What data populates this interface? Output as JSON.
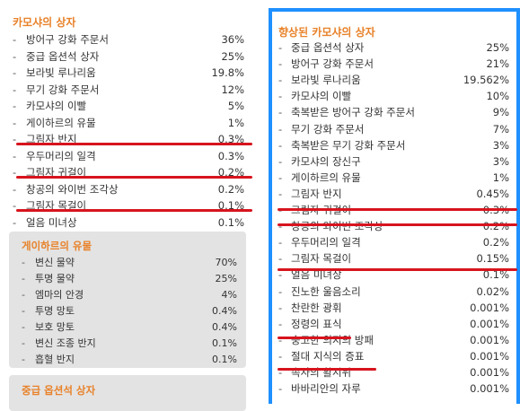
{
  "left": {
    "title": "카모샤의 상자",
    "items": [
      {
        "name": "방어구 강화 주문서",
        "pct": "36%"
      },
      {
        "name": "중급 옵션석 상자",
        "pct": "25%"
      },
      {
        "name": "보라빛 루나리움",
        "pct": "19.8%"
      },
      {
        "name": "무기 강화 주문서",
        "pct": "12%"
      },
      {
        "name": "카모샤의 이빨",
        "pct": "5%"
      },
      {
        "name": "게이하르의 유물",
        "pct": "1%"
      },
      {
        "name": "그림자 반지",
        "pct": "0.3%"
      },
      {
        "name": "우두머리의 일격",
        "pct": "0.3%"
      },
      {
        "name": "그림자 귀걸이",
        "pct": "0.2%"
      },
      {
        "name": "창공의 와이번 조각상",
        "pct": "0.2%"
      },
      {
        "name": "그림자 목걸이",
        "pct": "0.1%"
      },
      {
        "name": "얼음 미녀상",
        "pct": "0.1%"
      }
    ],
    "sub1": {
      "title": "게이하르의 유물",
      "items": [
        {
          "name": "변신 물약",
          "pct": "70%"
        },
        {
          "name": "투명 물약",
          "pct": "25%"
        },
        {
          "name": "엠마의 안경",
          "pct": "4%"
        },
        {
          "name": "투명 망토",
          "pct": "0.4%"
        },
        {
          "name": "보호 망토",
          "pct": "0.4%"
        },
        {
          "name": "변신 조종 반지",
          "pct": "0.1%"
        },
        {
          "name": "흡혈 반지",
          "pct": "0.1%"
        }
      ]
    },
    "sub2": {
      "title": "중급 옵션석 상자"
    }
  },
  "right": {
    "title": "향상된 카모샤의 상자",
    "items": [
      {
        "name": "중급 옵션석 상자",
        "pct": "25%"
      },
      {
        "name": "방어구 강화 주문서",
        "pct": "21%"
      },
      {
        "name": "보라빛 루나리움",
        "pct": "19.562%"
      },
      {
        "name": "카모샤의 이빨",
        "pct": "10%"
      },
      {
        "name": "축복받은 방어구 강화 주문서",
        "pct": "9%"
      },
      {
        "name": "무기 강화 주문서",
        "pct": "7%"
      },
      {
        "name": "축복받은 무기 강화 주문서",
        "pct": "3%"
      },
      {
        "name": "카모샤의 장신구",
        "pct": "3%"
      },
      {
        "name": "게이하르의 유물",
        "pct": "1%"
      },
      {
        "name": "그림자 반지",
        "pct": "0.45%"
      },
      {
        "name": "그림자 귀걸이",
        "pct": "0.3%"
      },
      {
        "name": "창공의 와이번 조각상",
        "pct": "0.2%"
      },
      {
        "name": "우두머리의 일격",
        "pct": "0.2%"
      },
      {
        "name": "그림자 목걸이",
        "pct": "0.15%"
      },
      {
        "name": "얼음 미녀상",
        "pct": "0.1%"
      },
      {
        "name": "진노한 울음소리",
        "pct": "0.02%"
      },
      {
        "name": "찬란한 광휘",
        "pct": "0.001%"
      },
      {
        "name": "정령의 표식",
        "pct": "0.001%"
      },
      {
        "name": "숭고한 의지의 방패",
        "pct": "0.001%"
      },
      {
        "name": "절대 지식의 증표",
        "pct": "0.001%"
      },
      {
        "name": "속사의 활시위",
        "pct": "0.001%"
      },
      {
        "name": "바바리안의 자루",
        "pct": "0.001%"
      }
    ]
  },
  "colors": {
    "title_orange": "#e8822a",
    "underline_red": "#d7141e",
    "frame_blue": "#1e90ff",
    "subbox_gray": "#e3e3e3"
  }
}
